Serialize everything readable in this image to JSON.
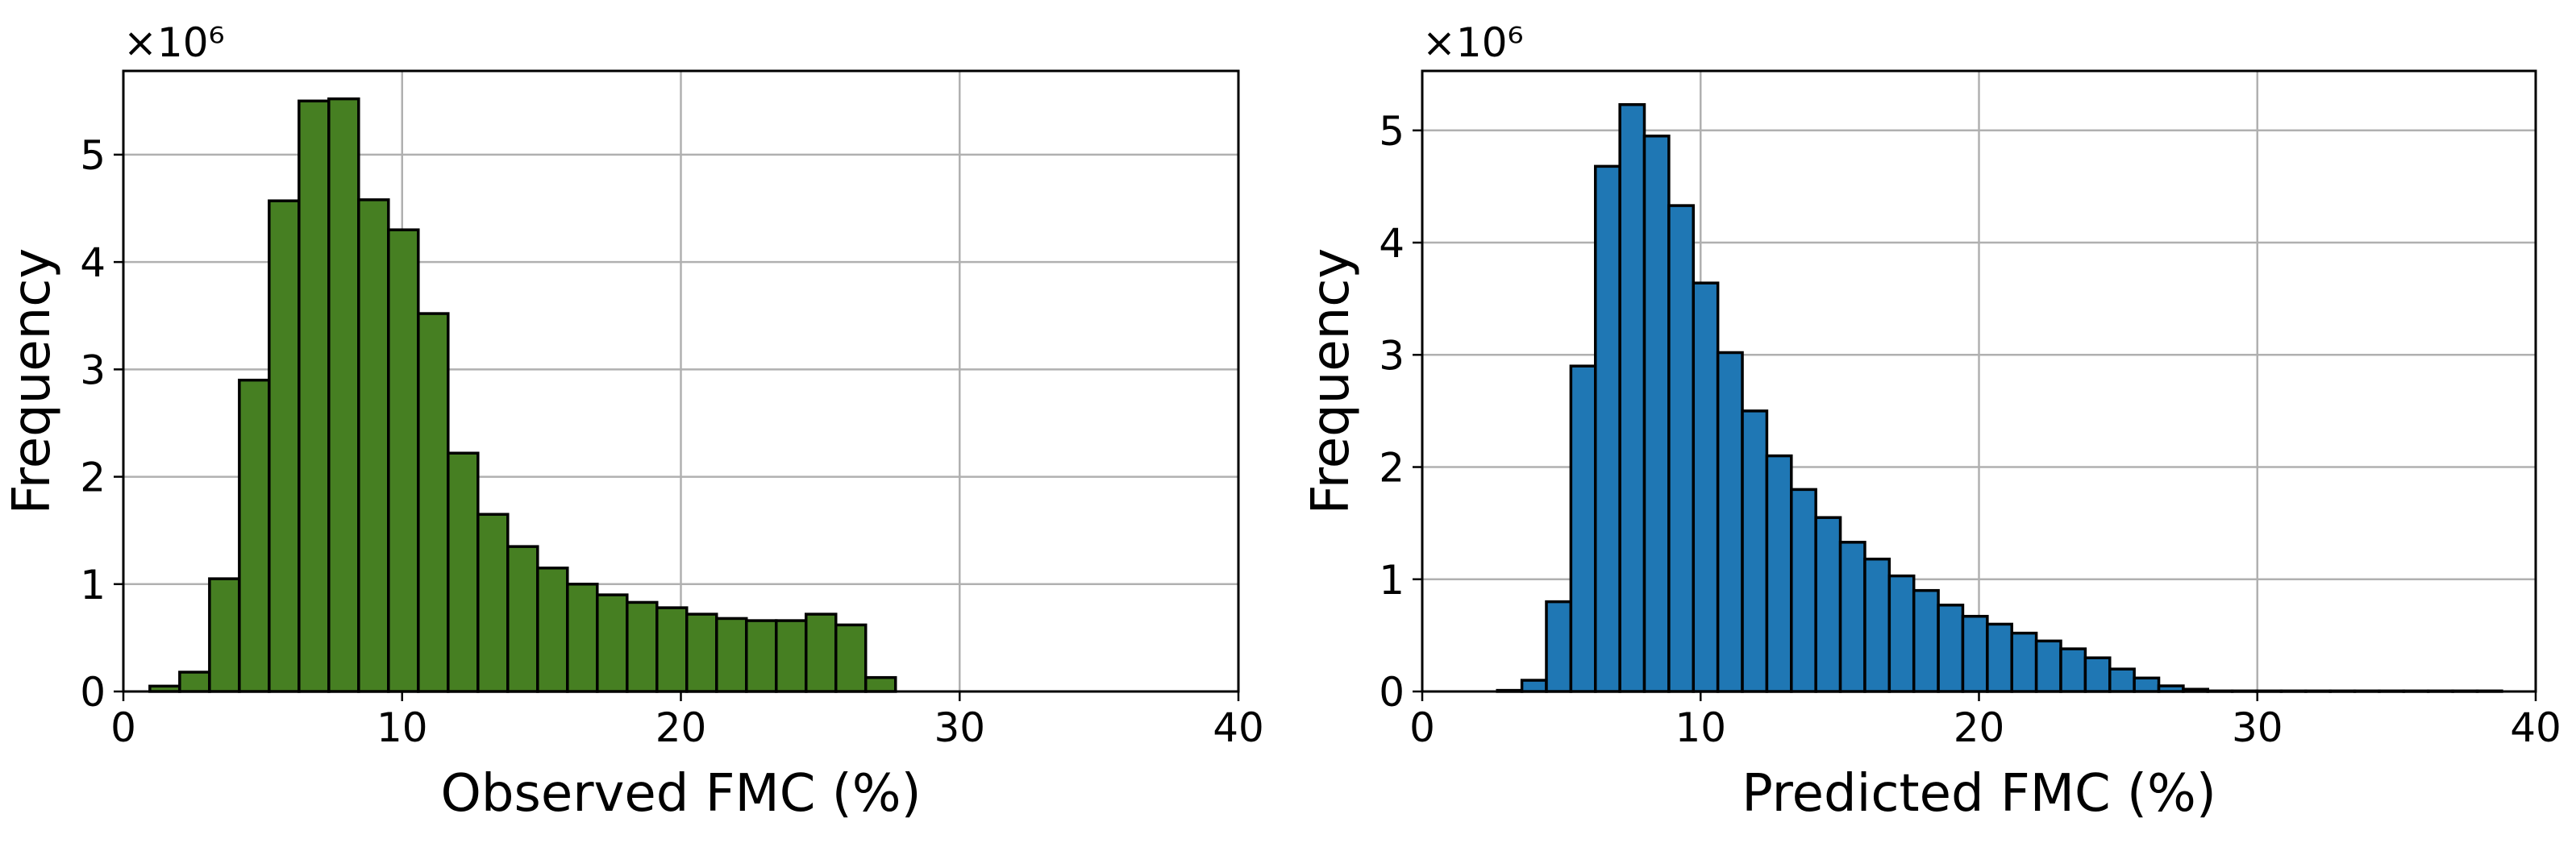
{
  "chart_data": [
    {
      "type": "histogram",
      "xlabel": "Observed FMC (%)",
      "ylabel": "Frequency",
      "offset_text": "×10⁶",
      "color": "#467f22",
      "edgecolor": "#000000",
      "grid": true,
      "xlim": [
        0,
        40
      ],
      "xticks": [
        0,
        10,
        20,
        30,
        40
      ],
      "ylim": [
        0,
        5.78
      ],
      "yticks": [
        0,
        1,
        2,
        3,
        4,
        5
      ],
      "bins": [
        0.95,
        2.02,
        3.09,
        4.16,
        5.23,
        6.3,
        7.37,
        8.44,
        9.51,
        10.58,
        11.65,
        12.72,
        13.79,
        14.86,
        15.93,
        17.0,
        18.07,
        19.14,
        20.21,
        21.28,
        22.35,
        23.42,
        24.49,
        25.56,
        26.63,
        27.7
      ],
      "values": [
        0.05,
        0.18,
        1.05,
        2.9,
        4.57,
        5.5,
        5.52,
        4.58,
        4.3,
        3.52,
        2.22,
        1.65,
        1.35,
        1.15,
        1.0,
        0.9,
        0.83,
        0.78,
        0.72,
        0.68,
        0.66,
        0.66,
        0.72,
        0.62,
        0.13
      ]
    },
    {
      "type": "histogram",
      "xlabel": "Predicted FMC (%)",
      "ylabel": "Frequency",
      "offset_text": "×10⁶",
      "color": "#1f77b4",
      "edgecolor": "#000000",
      "grid": true,
      "xlim": [
        0,
        40
      ],
      "xticks": [
        0,
        10,
        20,
        30,
        40
      ],
      "ylim": [
        0,
        5.53
      ],
      "yticks": [
        0,
        1,
        2,
        3,
        4,
        5
      ],
      "bins": [
        2.7,
        3.58,
        4.46,
        5.34,
        6.22,
        7.1,
        7.98,
        8.86,
        9.74,
        10.62,
        11.5,
        12.38,
        13.26,
        14.14,
        15.02,
        15.9,
        16.78,
        17.66,
        18.54,
        19.42,
        20.3,
        21.18,
        22.06,
        22.94,
        23.82,
        24.7,
        25.58,
        26.46,
        27.34,
        28.22,
        29.1,
        29.98,
        30.86,
        31.74,
        32.62,
        33.5,
        34.38,
        35.26,
        36.14,
        37.02,
        37.9,
        38.78
      ],
      "values": [
        0.01,
        0.1,
        0.8,
        2.9,
        4.68,
        5.23,
        4.95,
        4.33,
        3.64,
        3.02,
        2.5,
        2.1,
        1.8,
        1.55,
        1.33,
        1.18,
        1.03,
        0.9,
        0.77,
        0.67,
        0.6,
        0.52,
        0.45,
        0.38,
        0.3,
        0.2,
        0.12,
        0.05,
        0.02,
        0.005,
        0.005,
        0.005,
        0.005,
        0.005,
        0.005,
        0.005,
        0.005,
        0.005,
        0.005,
        0.005,
        0.005
      ]
    }
  ]
}
